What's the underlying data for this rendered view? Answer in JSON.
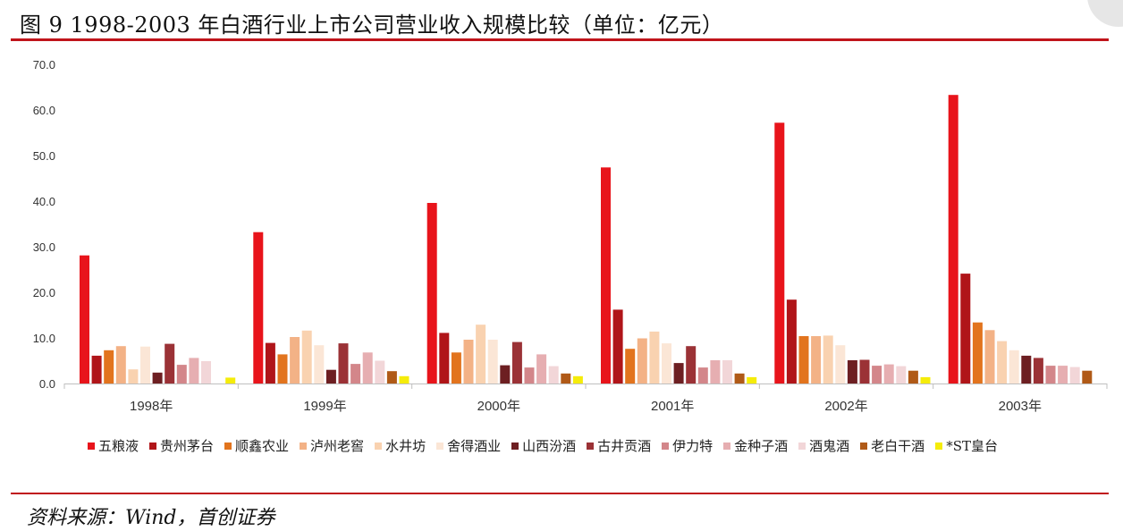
{
  "title": "图  9  1998-2003 年白酒行业上市公司营业收入规模比较（单位：亿元）",
  "source": "资料来源：Wind，首创证券",
  "chart_data": {
    "type": "bar",
    "categories": [
      "1998年",
      "1999年",
      "2000年",
      "2001年",
      "2002年",
      "2003年"
    ],
    "ylim": [
      0,
      70
    ],
    "yticks": [
      "0.0",
      "10.0",
      "20.0",
      "30.0",
      "40.0",
      "50.0",
      "60.0",
      "70.0"
    ],
    "grid": false,
    "legend_position": "bottom",
    "series": [
      {
        "name": "五粮液",
        "color": "#e8141b",
        "values": [
          28.1,
          33.2,
          39.6,
          47.4,
          57.2,
          63.3
        ]
      },
      {
        "name": "贵州茅台",
        "color": "#b01519",
        "values": [
          6.1,
          8.9,
          11.1,
          16.2,
          18.4,
          24.1
        ]
      },
      {
        "name": "顺鑫农业",
        "color": "#e2741e",
        "values": [
          7.3,
          6.4,
          6.8,
          7.6,
          10.4,
          13.4
        ]
      },
      {
        "name": "泸州老窖",
        "color": "#f3b286",
        "values": [
          8.2,
          10.2,
          9.6,
          9.9,
          10.4,
          11.7
        ]
      },
      {
        "name": "水井坊",
        "color": "#f9d2b0",
        "values": [
          3.1,
          11.6,
          12.9,
          11.4,
          10.5,
          9.3
        ]
      },
      {
        "name": "舍得酒业",
        "color": "#fbe6d6",
        "values": [
          8.1,
          8.4,
          9.6,
          8.8,
          8.4,
          7.3
        ]
      },
      {
        "name": "山西汾酒",
        "color": "#6d1f22",
        "values": [
          2.4,
          3.0,
          4.0,
          4.5,
          5.1,
          6.1
        ]
      },
      {
        "name": "古井贡酒",
        "color": "#9b3236",
        "values": [
          8.7,
          8.8,
          9.1,
          8.2,
          5.2,
          5.6
        ]
      },
      {
        "name": "伊力特",
        "color": "#d3868a",
        "values": [
          4.1,
          4.3,
          3.5,
          3.5,
          3.9,
          3.9
        ]
      },
      {
        "name": "金种子酒",
        "color": "#e6aeb1",
        "values": [
          5.6,
          6.8,
          6.4,
          5.1,
          4.2,
          3.9
        ]
      },
      {
        "name": "酒鬼酒",
        "color": "#f2d6d8",
        "values": [
          4.9,
          5.0,
          3.8,
          5.1,
          3.8,
          3.6
        ]
      },
      {
        "name": "老白干酒",
        "color": "#b05a17",
        "values": [
          0,
          2.7,
          2.2,
          2.2,
          2.8,
          2.8
        ]
      },
      {
        "name": "*ST皇台",
        "color": "#f5ec0a",
        "values": [
          1.3,
          1.6,
          1.6,
          1.4,
          1.4,
          0
        ]
      }
    ]
  }
}
